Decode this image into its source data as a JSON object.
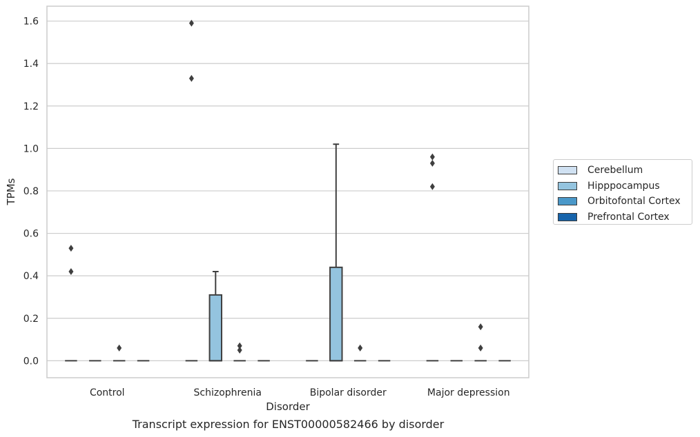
{
  "chart_data": {
    "type": "box",
    "categories": [
      "Control",
      "Schizophrenia",
      "Bipolar disorder",
      "Major depression"
    ],
    "xlabel": "Disorder",
    "ylabel": "TPMs",
    "caption": "Transcript expression for ENST00000582466 by disorder",
    "ylim": [
      -0.08,
      1.67
    ],
    "yticks": [
      0.0,
      0.2,
      0.4,
      0.6,
      0.8,
      1.0,
      1.2,
      1.4,
      1.6
    ],
    "ytick_labels": [
      "0.0",
      "0.2",
      "0.4",
      "0.6",
      "0.8",
      "1.0",
      "1.2",
      "1.4",
      "1.6"
    ],
    "grid": "horizontal",
    "legend_position": "right",
    "series": [
      {
        "name": "Cerebellum",
        "color": "#d0e1f2",
        "boxes": [
          {
            "q1": 0,
            "median": 0,
            "q3": 0,
            "whisker_low": 0,
            "whisker_high": 0,
            "outliers": [
              0.53,
              0.42
            ]
          },
          {
            "q1": 0,
            "median": 0,
            "q3": 0,
            "whisker_low": 0,
            "whisker_high": 0,
            "outliers": [
              1.59,
              1.33
            ]
          },
          {
            "q1": 0,
            "median": 0,
            "q3": 0,
            "whisker_low": 0,
            "whisker_high": 0,
            "outliers": []
          },
          {
            "q1": 0,
            "median": 0,
            "q3": 0,
            "whisker_low": 0,
            "whisker_high": 0,
            "outliers": [
              0.96,
              0.93,
              0.82
            ]
          }
        ]
      },
      {
        "name": "Hipppocampus",
        "color": "#94c4df",
        "boxes": [
          {
            "q1": 0,
            "median": 0,
            "q3": 0,
            "whisker_low": 0,
            "whisker_high": 0,
            "outliers": []
          },
          {
            "q1": 0,
            "median": 0,
            "q3": 0.31,
            "whisker_low": 0,
            "whisker_high": 0.42,
            "outliers": []
          },
          {
            "q1": 0,
            "median": 0,
            "q3": 0.44,
            "whisker_low": 0,
            "whisker_high": 1.02,
            "outliers": []
          },
          {
            "q1": 0,
            "median": 0,
            "q3": 0,
            "whisker_low": 0,
            "whisker_high": 0,
            "outliers": []
          }
        ]
      },
      {
        "name": "Orbitofontal Cortex",
        "color": "#4a98c9",
        "boxes": [
          {
            "q1": 0,
            "median": 0,
            "q3": 0,
            "whisker_low": 0,
            "whisker_high": 0,
            "outliers": [
              0.06
            ]
          },
          {
            "q1": 0,
            "median": 0,
            "q3": 0,
            "whisker_low": 0,
            "whisker_high": 0,
            "outliers": [
              0.07,
              0.05
            ]
          },
          {
            "q1": 0,
            "median": 0,
            "q3": 0,
            "whisker_low": 0,
            "whisker_high": 0,
            "outliers": [
              0.06
            ]
          },
          {
            "q1": 0,
            "median": 0,
            "q3": 0,
            "whisker_low": 0,
            "whisker_high": 0,
            "outliers": [
              0.16,
              0.06
            ]
          }
        ]
      },
      {
        "name": "Prefrontal Cortex",
        "color": "#1764ab",
        "boxes": [
          {
            "q1": 0,
            "median": 0,
            "q3": 0,
            "whisker_low": 0,
            "whisker_high": 0,
            "outliers": []
          },
          {
            "q1": 0,
            "median": 0,
            "q3": 0,
            "whisker_low": 0,
            "whisker_high": 0,
            "outliers": []
          },
          {
            "q1": 0,
            "median": 0,
            "q3": 0,
            "whisker_low": 0,
            "whisker_high": 0,
            "outliers": []
          },
          {
            "q1": 0,
            "median": 0,
            "q3": 0,
            "whisker_low": 0,
            "whisker_high": 0,
            "outliers": []
          }
        ]
      }
    ]
  }
}
